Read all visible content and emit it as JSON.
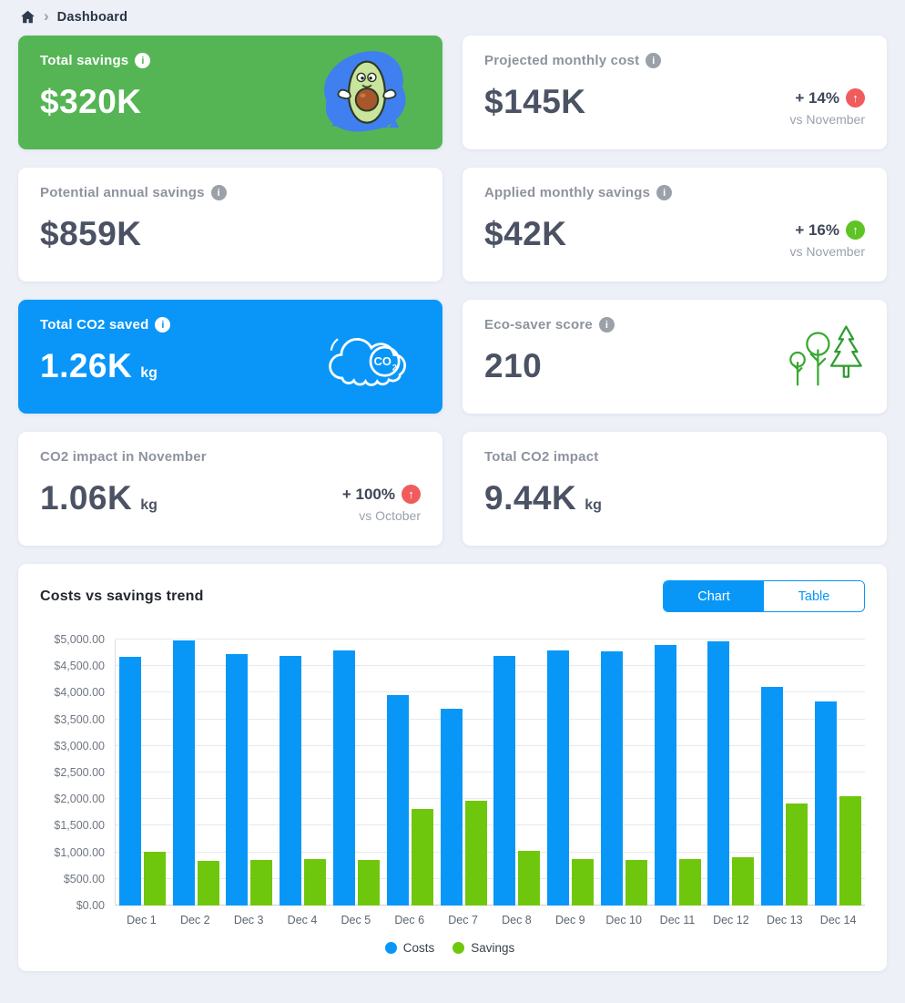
{
  "breadcrumb": {
    "current": "Dashboard"
  },
  "icons": {
    "info": "i",
    "trend_up": "↑",
    "separator": "›"
  },
  "cards": {
    "total_savings": {
      "title": "Total savings",
      "value": "$320K"
    },
    "projected_monthly_cost": {
      "title": "Projected monthly cost",
      "value": "$145K",
      "delta": "+ 14%",
      "delta_direction": "up",
      "delta_color": "red",
      "compare": "vs November"
    },
    "potential_annual_savings": {
      "title": "Potential annual savings",
      "value": "$859K"
    },
    "applied_monthly_savings": {
      "title": "Applied monthly savings",
      "value": "$42K",
      "delta": "+ 16%",
      "delta_direction": "up",
      "delta_color": "green",
      "compare": "vs November"
    },
    "total_co2_saved": {
      "title": "Total CO2 saved",
      "value": "1.26K",
      "unit": "kg"
    },
    "eco_saver_score": {
      "title": "Eco-saver score",
      "value": "210"
    },
    "co2_impact_november": {
      "title": "CO2 impact in November",
      "value": "1.06K",
      "unit": "kg",
      "delta": "+ 100%",
      "delta_direction": "up",
      "delta_color": "red",
      "compare": "vs October"
    },
    "total_co2_impact": {
      "title": "Total CO2 impact",
      "value": "9.44K",
      "unit": "kg"
    }
  },
  "chart_section": {
    "title": "Costs vs savings trend",
    "toggle": {
      "chart_label": "Chart",
      "table_label": "Table",
      "active": "Chart"
    }
  },
  "chart_data": {
    "type": "bar",
    "title": "Costs vs savings trend",
    "categories": [
      "Dec 1",
      "Dec 2",
      "Dec 3",
      "Dec 4",
      "Dec 5",
      "Dec 6",
      "Dec 7",
      "Dec 8",
      "Dec 9",
      "Dec 10",
      "Dec 11",
      "Dec 12",
      "Dec 13",
      "Dec 14"
    ],
    "series": [
      {
        "name": "Costs",
        "color": "#0997f7",
        "values": [
          4670,
          4980,
          4720,
          4700,
          4800,
          3950,
          3700,
          4700,
          4800,
          4780,
          4900,
          4970,
          4110,
          3830
        ]
      },
      {
        "name": "Savings",
        "color": "#6fc70d",
        "values": [
          1010,
          840,
          855,
          865,
          855,
          1810,
          1975,
          1030,
          875,
          850,
          880,
          900,
          1910,
          2050
        ]
      }
    ],
    "y_ticks": [
      "$0.00",
      "$500.00",
      "$1,000.00",
      "$1,500.00",
      "$2,000.00",
      "$2,500.00",
      "$3,000.00",
      "$3,500.00",
      "$4,000.00",
      "$4,500.00",
      "$5,000.00"
    ],
    "ylim": [
      0,
      5000
    ],
    "grid": true,
    "legend_position": "bottom"
  },
  "colors": {
    "page_bg": "#edf0f7",
    "card_green": "#55b555",
    "card_blue": "#0996f8",
    "bar_costs": "#0997f7",
    "bar_savings": "#6fc70d",
    "badge_red": "#f05c5c",
    "badge_green": "#5ec425",
    "accent_blue": "#0997f7"
  }
}
